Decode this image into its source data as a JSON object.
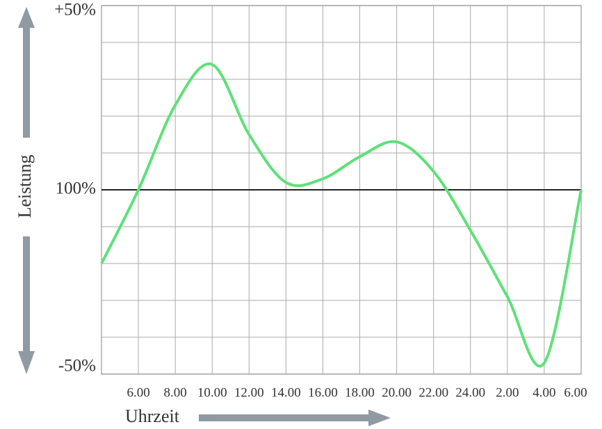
{
  "chart_data": {
    "type": "line",
    "x_label": "Uhrzeit",
    "y_label": "Leistung",
    "categories": [
      null,
      "6.00",
      "8.00",
      "10.00",
      "12.00",
      "14.00",
      "16.00",
      "18.00",
      "20.00",
      "22.00",
      "24.00",
      "2.00",
      "4.00",
      "6.00"
    ],
    "series": [
      {
        "name": "Leistung",
        "color": "#5fe07a",
        "values": [
          -20,
          0,
          23,
          34,
          15,
          2,
          3,
          9,
          13,
          5,
          -11,
          -29,
          -47,
          0
        ]
      }
    ],
    "ylim": [
      -50,
      50
    ],
    "yticks": [
      {
        "value": 50,
        "label": "+50%"
      },
      {
        "value": 0,
        "label": "100%"
      },
      {
        "value": -50,
        "label": "-50%"
      }
    ],
    "ygrid": [
      -40,
      -30,
      -20,
      -10,
      10,
      20,
      30,
      40
    ],
    "grid": true
  }
}
